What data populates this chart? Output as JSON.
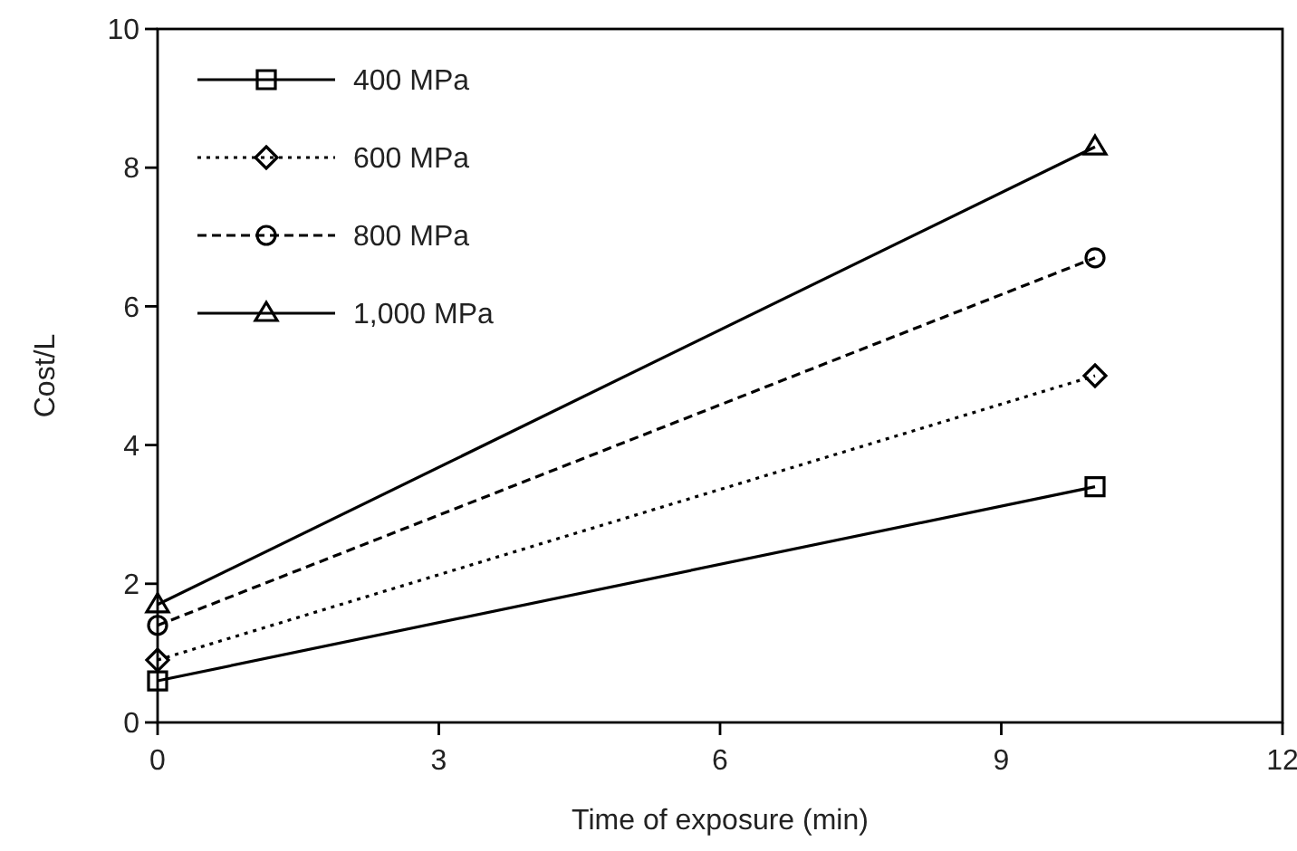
{
  "chart_data": {
    "type": "line",
    "xlabel": "Time of exposure (min)",
    "ylabel": "Cost/L",
    "x": [
      0,
      10
    ],
    "series": [
      {
        "name": "400 MPa",
        "color": "#000000",
        "values": [
          0.6,
          3.4
        ],
        "marker": "square",
        "line_style": "solid"
      },
      {
        "name": "600 MPa",
        "color": "#000000",
        "values": [
          0.9,
          5.0
        ],
        "marker": "diamond",
        "line_style": "dotted"
      },
      {
        "name": "800 MPa",
        "color": "#000000",
        "values": [
          1.4,
          6.7
        ],
        "marker": "circle",
        "line_style": "dashed"
      },
      {
        "name": "1,000 MPa",
        "color": "#000000",
        "values": [
          1.7,
          8.3
        ],
        "marker": "triangle",
        "line_style": "solid"
      }
    ],
    "xlim": [
      0,
      12
    ],
    "xticks": [
      0,
      3,
      6,
      9,
      12
    ],
    "ylim": [
      0,
      10
    ],
    "yticks": [
      0,
      2,
      4,
      6,
      8,
      10
    ],
    "grid": false,
    "legend": "top left"
  }
}
